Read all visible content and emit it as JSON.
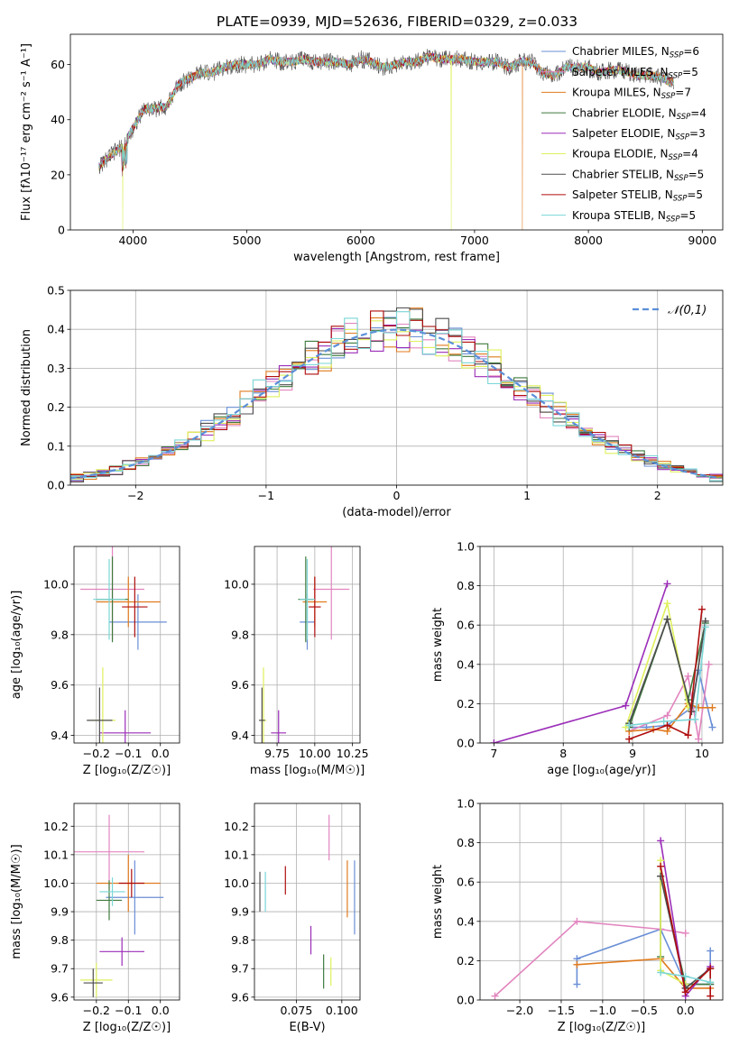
{
  "figure": {
    "title": "PLATE=0939, MJD=52636, FIBERID=0329, z=0.033"
  },
  "series": {
    "names": [
      "Chabrier MILES",
      "Salpeter MILES",
      "Kroupa MILES",
      "Chabrier ELODIE",
      "Salpeter ELODIE",
      "Kroupa ELODIE",
      "Chabrier STELIB",
      "Salpeter STELIB",
      "Kroupa STELIB"
    ],
    "nssp": [
      6,
      5,
      7,
      4,
      3,
      4,
      5,
      5,
      5
    ],
    "colors": [
      "#6a8fd6",
      "#e285bf",
      "#e07b1f",
      "#3e7a3e",
      "#9b2db8",
      "#dff05c",
      "#4d4d4d",
      "#b00d0d",
      "#7ad6d6"
    ]
  },
  "chart_data": [
    {
      "id": "spectrum",
      "type": "line",
      "title": "PLATE=0939, MJD=52636, FIBERID=0329, z=0.033",
      "xlabel": "wavelength [Angstrom, rest frame]",
      "ylabel": "Flux [fλ10⁻¹⁷ erg cm⁻² s⁻¹ A⁻¹]",
      "xlim": [
        3450,
        9180
      ],
      "ylim": [
        0,
        71
      ],
      "xticks": [
        4000,
        5000,
        6000,
        7000,
        8000,
        9000
      ],
      "yticks": [
        0,
        20,
        40,
        60
      ],
      "legend_loc": "upper right",
      "x": [
        3700,
        3800,
        3900,
        4000,
        4100,
        4200,
        4300,
        4400,
        4500,
        4600,
        4700,
        4800,
        4900,
        5000,
        5100,
        5200,
        5300,
        5400,
        5500,
        5600,
        5700,
        5800,
        5900,
        6000,
        6100,
        6200,
        6300,
        6400,
        6500,
        6600,
        6700,
        6800,
        6900,
        7000,
        7100,
        7200,
        7300,
        7400,
        7500,
        7600,
        7700,
        7800,
        7900,
        8000,
        8100,
        8200,
        8300,
        8400,
        8500,
        8600,
        8700
      ],
      "y": [
        23,
        27,
        30,
        37,
        44,
        44,
        45,
        53,
        55,
        57,
        57,
        59,
        60,
        60,
        60,
        62,
        61,
        61,
        62,
        61,
        61,
        61,
        60,
        62,
        61,
        59,
        60,
        61,
        61,
        63,
        62,
        62,
        62,
        61,
        61,
        61,
        59,
        61,
        61,
        57,
        56,
        59,
        59,
        59,
        57,
        58,
        58,
        56,
        56,
        56,
        54
      ],
      "dips": [
        {
          "series": 5,
          "x": 3910,
          "y": 0
        },
        {
          "series": 5,
          "x": 6795,
          "y": 0
        },
        {
          "series": 2,
          "x": 7420,
          "y": 0
        }
      ]
    },
    {
      "id": "residuals",
      "type": "histogram",
      "xlabel": "(data-model)/error",
      "ylabel": "Normed distribution",
      "xlim": [
        -2.5,
        2.5
      ],
      "ylim": [
        0,
        0.5
      ],
      "xticks": [
        -2,
        -1,
        0,
        1,
        2
      ],
      "yticks": [
        0.0,
        0.1,
        0.2,
        0.3,
        0.4,
        0.5
      ],
      "reference": {
        "name": "𝒩(0,1)",
        "mean": 0,
        "sigma": 1
      },
      "bin_width": 0.1,
      "legend_loc": "upper right"
    },
    {
      "id": "age_vs_z",
      "type": "scatter",
      "xlabel": "Z [log₁₀(Z/Z☉)]",
      "ylabel": "age  [log₁₀(age/yr)]",
      "xlim": [
        -0.27,
        0.06
      ],
      "ylim": [
        9.37,
        10.15
      ],
      "xticks": [
        -0.2,
        -0.1,
        0.0
      ],
      "yticks": [
        9.4,
        9.6,
        9.8,
        10.0
      ],
      "points": [
        {
          "series": 0,
          "x": -0.07,
          "y": 9.85,
          "xerr": 0.09,
          "yerr": 0.11
        },
        {
          "series": 1,
          "x": -0.15,
          "y": 9.98,
          "xerr": 0.1,
          "yerr": 0.2
        },
        {
          "series": 2,
          "x": -0.1,
          "y": 9.93,
          "xerr": 0.1,
          "yerr": 0.1
        },
        {
          "series": 3,
          "x": -0.15,
          "y": 9.94,
          "xerr": 0.05,
          "yerr": 0.17
        },
        {
          "series": 4,
          "x": -0.11,
          "y": 9.41,
          "xerr": 0.08,
          "yerr": 0.09
        },
        {
          "series": 5,
          "x": -0.18,
          "y": 9.46,
          "xerr": 0.04,
          "yerr": 0.21
        },
        {
          "series": 6,
          "x": -0.19,
          "y": 9.46,
          "xerr": 0.04,
          "yerr": 0.13
        },
        {
          "series": 7,
          "x": -0.08,
          "y": 9.91,
          "xerr": 0.04,
          "yerr": 0.12
        },
        {
          "series": 8,
          "x": -0.16,
          "y": 9.94,
          "xerr": 0.05,
          "yerr": 0.16
        }
      ]
    },
    {
      "id": "age_vs_mass",
      "type": "scatter",
      "xlabel": "mass [log₁₀(M/M☉)]",
      "ylabel": "",
      "xlim": [
        9.6,
        10.3
      ],
      "ylim": [
        9.37,
        10.15
      ],
      "xticks": [
        9.75,
        10.0,
        10.25
      ],
      "yticks": [
        9.4,
        9.6,
        9.8,
        10.0
      ],
      "points": [
        {
          "series": 0,
          "x": 9.95,
          "y": 9.85,
          "xerr": 0.05,
          "yerr": 0.11
        },
        {
          "series": 1,
          "x": 10.11,
          "y": 9.98,
          "xerr": 0.12,
          "yerr": 0.2
        },
        {
          "series": 2,
          "x": 10.0,
          "y": 9.93,
          "xerr": 0.08,
          "yerr": 0.1
        },
        {
          "series": 3,
          "x": 9.94,
          "y": 9.94,
          "xerr": 0.05,
          "yerr": 0.17
        },
        {
          "series": 4,
          "x": 9.76,
          "y": 9.41,
          "xerr": 0.05,
          "yerr": 0.09
        },
        {
          "series": 5,
          "x": 9.66,
          "y": 9.46,
          "xerr": 0.02,
          "yerr": 0.21
        },
        {
          "series": 6,
          "x": 9.65,
          "y": 9.46,
          "xerr": 0.02,
          "yerr": 0.13
        },
        {
          "series": 7,
          "x": 10.0,
          "y": 9.91,
          "xerr": 0.04,
          "yerr": 0.12
        },
        {
          "series": 8,
          "x": 9.95,
          "y": 9.94,
          "xerr": 0.05,
          "yerr": 0.16
        }
      ]
    },
    {
      "id": "mass_weight_vs_age",
      "type": "line",
      "xlabel": "age  [log₁₀(age/yr)]",
      "ylabel": "mass weight",
      "xlim": [
        6.8,
        10.3
      ],
      "ylim": [
        0,
        1
      ],
      "xticks": [
        7,
        8,
        9,
        10
      ],
      "yticks": [
        0.0,
        0.2,
        0.4,
        0.6,
        0.8,
        1.0
      ],
      "lines": [
        {
          "series": 0,
          "x": [
            8.95,
            9.2,
            9.5,
            9.85,
            9.95,
            10.15
          ],
          "y": [
            0.08,
            0.08,
            0.09,
            0.18,
            0.37,
            0.08
          ]
        },
        {
          "series": 1,
          "x": [
            8.95,
            9.5,
            9.8,
            9.95,
            10.1
          ],
          "y": [
            0.06,
            0.14,
            0.34,
            0.02,
            0.4
          ]
        },
        {
          "series": 2,
          "x": [
            8.95,
            9.3,
            9.5,
            9.8,
            9.95,
            10.15
          ],
          "y": [
            0.06,
            0.07,
            0.06,
            0.2,
            0.18,
            0.18
          ]
        },
        {
          "series": 3,
          "x": [
            8.95,
            9.5,
            9.8,
            10.05
          ],
          "y": [
            0.08,
            0.63,
            0.22,
            0.61
          ]
        },
        {
          "series": 4,
          "x": [
            7.0,
            8.9,
            9.5
          ],
          "y": [
            0.0,
            0.19,
            0.81
          ]
        },
        {
          "series": 5,
          "x": [
            8.9,
            9.5,
            9.8
          ],
          "y": [
            0.08,
            0.71,
            0.18
          ]
        },
        {
          "series": 6,
          "x": [
            8.95,
            9.5,
            9.85,
            10.05
          ],
          "y": [
            0.1,
            0.63,
            0.16,
            0.62
          ]
        },
        {
          "series": 7,
          "x": [
            8.95,
            9.5,
            9.8,
            10.0
          ],
          "y": [
            0.02,
            0.09,
            0.04,
            0.68
          ]
        },
        {
          "series": 8,
          "x": [
            8.95,
            9.45,
            9.9,
            10.05
          ],
          "y": [
            0.09,
            0.11,
            0.12,
            0.59
          ]
        }
      ]
    },
    {
      "id": "mass_vs_z",
      "type": "scatter",
      "xlabel": "Z [log₁₀(Z/Z☉)]",
      "ylabel": "mass [log₁₀(M/M☉)]",
      "xlim": [
        -0.27,
        0.06
      ],
      "ylim": [
        9.59,
        10.28
      ],
      "xticks": [
        -0.2,
        -0.1,
        0.0
      ],
      "yticks": [
        9.6,
        9.7,
        9.8,
        9.9,
        10.0,
        10.1,
        10.2
      ],
      "points": [
        {
          "series": 0,
          "x": -0.08,
          "y": 9.95,
          "xerr": 0.09,
          "yerr": 0.13
        },
        {
          "series": 1,
          "x": -0.16,
          "y": 10.11,
          "xerr": 0.11,
          "yerr": 0.13
        },
        {
          "series": 2,
          "x": -0.1,
          "y": 10.0,
          "xerr": 0.1,
          "yerr": 0.1
        },
        {
          "series": 3,
          "x": -0.16,
          "y": 9.94,
          "xerr": 0.04,
          "yerr": 0.07
        },
        {
          "series": 4,
          "x": -0.12,
          "y": 9.76,
          "xerr": 0.07,
          "yerr": 0.05
        },
        {
          "series": 5,
          "x": -0.2,
          "y": 9.66,
          "xerr": 0.05,
          "yerr": 0.06
        },
        {
          "series": 6,
          "x": -0.21,
          "y": 9.65,
          "xerr": 0.03,
          "yerr": 0.05
        },
        {
          "series": 7,
          "x": -0.09,
          "y": 10.0,
          "xerr": 0.04,
          "yerr": 0.05
        },
        {
          "series": 8,
          "x": -0.15,
          "y": 9.97,
          "xerr": 0.04,
          "yerr": 0.05
        }
      ]
    },
    {
      "id": "mass_vs_ebv",
      "type": "scatter",
      "xlabel": "E(B-V)",
      "ylabel": "",
      "xlim": [
        0.052,
        0.11
      ],
      "ylim": [
        9.59,
        10.28
      ],
      "xticks": [
        0.075,
        0.1
      ],
      "yticks": [
        9.6,
        9.7,
        9.8,
        9.9,
        10.0,
        10.1,
        10.2
      ],
      "points": [
        {
          "series": 0,
          "x": 0.107,
          "y": 9.95,
          "xerr": 0,
          "yerr": 0.13
        },
        {
          "series": 1,
          "x": 0.093,
          "y": 10.16,
          "xerr": 0,
          "yerr": 0.08
        },
        {
          "series": 2,
          "x": 0.103,
          "y": 9.98,
          "xerr": 0,
          "yerr": 0.1
        },
        {
          "series": 3,
          "x": 0.09,
          "y": 9.69,
          "xerr": 0,
          "yerr": 0.06
        },
        {
          "series": 4,
          "x": 0.083,
          "y": 9.8,
          "xerr": 0,
          "yerr": 0.05
        },
        {
          "series": 5,
          "x": 0.094,
          "y": 9.69,
          "xerr": 0,
          "yerr": 0.05
        },
        {
          "series": 6,
          "x": 0.055,
          "y": 9.97,
          "xerr": 0,
          "yerr": 0.07
        },
        {
          "series": 7,
          "x": 0.069,
          "y": 10.01,
          "xerr": 0,
          "yerr": 0.05
        },
        {
          "series": 8,
          "x": 0.058,
          "y": 9.97,
          "xerr": 0,
          "yerr": 0.07
        }
      ]
    },
    {
      "id": "mass_weight_vs_z",
      "type": "line",
      "xlabel": "Z [log₁₀(Z/Z☉)]",
      "ylabel": "mass weight",
      "xlim": [
        -2.48,
        0.45
      ],
      "ylim": [
        0,
        1
      ],
      "xticks": [
        -2.0,
        -1.5,
        -1.0,
        -0.5,
        0.0
      ],
      "yticks": [
        0.0,
        0.2,
        0.4,
        0.6,
        0.8,
        1.0
      ],
      "lines": [
        {
          "series": 0,
          "x": [
            -1.31,
            -1.31,
            -0.3,
            0.0,
            0.3,
            0.3
          ],
          "y": [
            0.08,
            0.21,
            0.36,
            0.08,
            0.08,
            0.25
          ]
        },
        {
          "series": 1,
          "x": [
            -2.3,
            -1.31,
            -0.3,
            0.0
          ],
          "y": [
            0.02,
            0.4,
            0.36,
            0.34
          ]
        },
        {
          "series": 2,
          "x": [
            -1.31,
            -0.3,
            0.0,
            0.3
          ],
          "y": [
            0.18,
            0.21,
            0.06,
            0.06
          ]
        },
        {
          "series": 3,
          "x": [
            -0.3,
            -0.3,
            0.0,
            0.3
          ],
          "y": [
            0.22,
            0.63,
            0.08,
            0.08
          ]
        },
        {
          "series": 4,
          "x": [
            -0.3,
            0.0,
            0.3
          ],
          "y": [
            0.81,
            0.02,
            0.17
          ]
        },
        {
          "series": 5,
          "x": [
            -0.3,
            -0.3,
            0.0
          ],
          "y": [
            0.71,
            0.15,
            0.08
          ]
        },
        {
          "series": 6,
          "x": [
            -0.3,
            0.0,
            0.3
          ],
          "y": [
            0.63,
            0.06,
            0.16
          ]
        },
        {
          "series": 7,
          "x": [
            -0.3,
            0.0,
            0.3,
            0.3
          ],
          "y": [
            0.68,
            0.04,
            0.16,
            0.02
          ]
        },
        {
          "series": 8,
          "x": [
            -0.3,
            0.0,
            0.3
          ],
          "y": [
            0.14,
            0.12,
            0.09
          ]
        }
      ]
    }
  ]
}
